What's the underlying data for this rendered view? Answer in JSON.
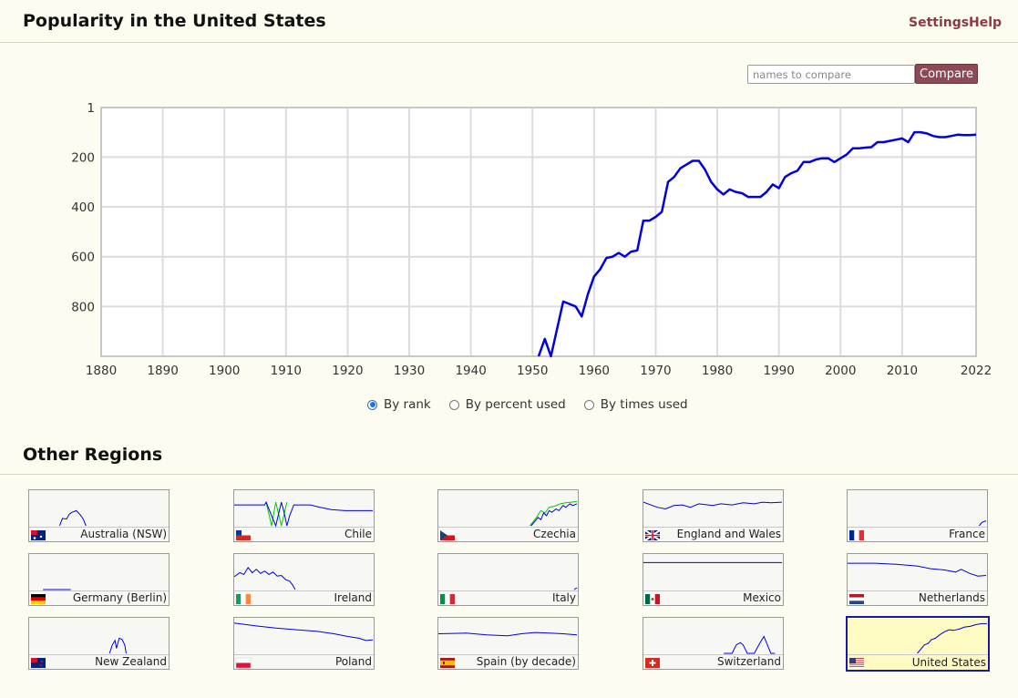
{
  "header": {
    "title": "Popularity in the United States",
    "settings_label": "Settings",
    "help_label": "Help"
  },
  "compare": {
    "placeholder": "names to compare",
    "button_label": "Compare"
  },
  "colors": {
    "accent": "#8d4a56",
    "line": "#0000e0",
    "secondary_line": "#00cc00",
    "selected_card_bg": "#fdfbc2"
  },
  "chart_data": {
    "type": "line",
    "x_range": [
      1880,
      2022
    ],
    "x_ticks": [
      "1880",
      "1890",
      "1900",
      "1910",
      "1920",
      "1930",
      "1940",
      "1950",
      "1960",
      "1970",
      "1980",
      "1990",
      "2000",
      "2010",
      "2022"
    ],
    "y_ticks": [
      "1",
      "200",
      "400",
      "600",
      "800"
    ],
    "y_axis": "rank (inverted, 1 at top)",
    "ylim": [
      1,
      1000
    ],
    "grid": true,
    "series": [
      {
        "x": [
          1951,
          1952,
          1953,
          1955,
          1957,
          1958,
          1959,
          1960,
          1961,
          1962,
          1963,
          1964,
          1965,
          1966,
          1967,
          1968,
          1969,
          1970,
          1971,
          1972,
          1973,
          1974,
          1975,
          1976,
          1977,
          1978,
          1979,
          1980,
          1981,
          1982,
          1983,
          1984,
          1985,
          1986,
          1987,
          1988,
          1989,
          1990,
          1991,
          1992,
          1993,
          1994,
          1995,
          1996,
          1997,
          1998,
          1999,
          2000,
          2001,
          2002,
          2003,
          2004,
          2005,
          2006,
          2007,
          2008,
          2009,
          2010,
          2011,
          2012,
          2013,
          2014,
          2015,
          2016,
          2017,
          2018,
          2019,
          2020,
          2021,
          2022
        ],
        "y": [
          1000,
          930,
          1000,
          780,
          800,
          840,
          750,
          680,
          650,
          605,
          600,
          585,
          600,
          580,
          575,
          455,
          455,
          440,
          420,
          300,
          280,
          245,
          230,
          215,
          215,
          250,
          300,
          330,
          350,
          330,
          340,
          345,
          360,
          360,
          360,
          340,
          310,
          325,
          280,
          265,
          255,
          220,
          220,
          210,
          205,
          205,
          220,
          205,
          190,
          165,
          165,
          162,
          160,
          140,
          140,
          135,
          130,
          125,
          140,
          100,
          100,
          105,
          115,
          120,
          120,
          115,
          110,
          112,
          112,
          110
        ]
      }
    ]
  },
  "view_options": [
    {
      "label": "By rank",
      "checked": true
    },
    {
      "label": "By percent used",
      "checked": false
    },
    {
      "label": "By times used",
      "checked": false
    }
  ],
  "other_regions": {
    "title": "Other Regions",
    "regions": [
      {
        "label": "Australia (NSW)",
        "flag": "australia-flag-icon",
        "spark": [
          [
            0.22,
            1
          ],
          [
            0.24,
            0.78
          ],
          [
            0.27,
            0.8
          ],
          [
            0.29,
            0.65
          ],
          [
            0.31,
            0.6
          ],
          [
            0.34,
            0.55
          ],
          [
            0.37,
            0.68
          ],
          [
            0.39,
            0.8
          ],
          [
            0.41,
            1
          ]
        ]
      },
      {
        "label": "Chile",
        "flag": "chile-flag-icon",
        "spark": [
          [
            0,
            0.38
          ],
          [
            0.22,
            0.38
          ],
          [
            0.23,
            0.3
          ],
          [
            0.25,
            0.5
          ],
          [
            0.27,
            0.7
          ],
          [
            0.3,
            1
          ],
          [
            0.34,
            0.3
          ],
          [
            0.36,
            0.6
          ],
          [
            0.38,
            1
          ],
          [
            0.4,
            0.7
          ],
          [
            0.43,
            0.38
          ],
          [
            0.48,
            0.38
          ],
          [
            0.55,
            0.38
          ],
          [
            0.62,
            0.45
          ],
          [
            0.7,
            0.52
          ],
          [
            0.8,
            0.55
          ],
          [
            0.9,
            0.55
          ],
          [
            1,
            0.55
          ]
        ],
        "spark2": [
          [
            0.23,
            0.3
          ],
          [
            0.27,
            1
          ],
          [
            0.3,
            0.3
          ],
          [
            0.34,
            1
          ],
          [
            0.38,
            0.3
          ]
        ]
      },
      {
        "label": "Czechia",
        "flag": "czechia-flag-icon",
        "spark": [
          [
            0.67,
            1
          ],
          [
            0.69,
            0.9
          ],
          [
            0.72,
            0.75
          ],
          [
            0.74,
            0.82
          ],
          [
            0.76,
            0.62
          ],
          [
            0.78,
            0.7
          ],
          [
            0.8,
            0.55
          ],
          [
            0.82,
            0.6
          ],
          [
            0.85,
            0.5
          ],
          [
            0.87,
            0.55
          ],
          [
            0.9,
            0.4
          ],
          [
            0.92,
            0.45
          ],
          [
            0.95,
            0.35
          ],
          [
            0.97,
            0.4
          ],
          [
            1,
            0.35
          ]
        ],
        "spark2": [
          [
            0.66,
            1
          ],
          [
            0.7,
            0.8
          ],
          [
            0.74,
            0.55
          ],
          [
            0.77,
            0.62
          ],
          [
            0.8,
            0.45
          ],
          [
            0.84,
            0.42
          ],
          [
            0.88,
            0.35
          ],
          [
            0.92,
            0.32
          ],
          [
            0.96,
            0.3
          ],
          [
            1,
            0.28
          ]
        ]
      },
      {
        "label": "England and Wales",
        "flag": "uk-flag-icon",
        "spark": [
          [
            0,
            0.3
          ],
          [
            0.1,
            0.45
          ],
          [
            0.16,
            0.5
          ],
          [
            0.22,
            0.4
          ],
          [
            0.28,
            0.38
          ],
          [
            0.34,
            0.45
          ],
          [
            0.4,
            0.35
          ],
          [
            0.5,
            0.4
          ],
          [
            0.56,
            0.35
          ],
          [
            0.64,
            0.38
          ],
          [
            0.72,
            0.32
          ],
          [
            0.8,
            0.35
          ],
          [
            0.86,
            0.3
          ],
          [
            0.92,
            0.32
          ],
          [
            1,
            0.3
          ]
        ]
      },
      {
        "label": "France",
        "flag": "france-flag-icon",
        "spark": [
          [
            0.95,
            1
          ],
          [
            0.97,
            0.9
          ],
          [
            1,
            0.85
          ]
        ]
      },
      {
        "label": "Germany (Berlin)",
        "flag": "germany-flag-icon",
        "spark": [
          [
            0.1,
            1
          ],
          [
            0.3,
            1
          ]
        ]
      },
      {
        "label": "Ireland",
        "flag": "ireland-flag-icon",
        "spark": [
          [
            0,
            0.62
          ],
          [
            0.04,
            0.5
          ],
          [
            0.07,
            0.55
          ],
          [
            0.1,
            0.35
          ],
          [
            0.13,
            0.5
          ],
          [
            0.16,
            0.4
          ],
          [
            0.19,
            0.52
          ],
          [
            0.22,
            0.45
          ],
          [
            0.25,
            0.55
          ],
          [
            0.28,
            0.48
          ],
          [
            0.31,
            0.6
          ],
          [
            0.34,
            0.58
          ],
          [
            0.37,
            0.7
          ],
          [
            0.4,
            0.75
          ],
          [
            0.42,
            0.85
          ],
          [
            0.44,
            1
          ]
        ]
      },
      {
        "label": "Italy",
        "flag": "italy-flag-icon",
        "spark": [
          [
            0.98,
            1
          ],
          [
            1,
            0.95
          ]
        ]
      },
      {
        "label": "Mexico",
        "flag": "mexico-flag-icon",
        "spark": [
          [
            0,
            0.2
          ],
          [
            1,
            0.2
          ]
        ]
      },
      {
        "label": "Netherlands",
        "flag": "netherlands-flag-icon",
        "spark": [
          [
            0,
            0.22
          ],
          [
            0.2,
            0.22
          ],
          [
            0.35,
            0.25
          ],
          [
            0.5,
            0.3
          ],
          [
            0.6,
            0.38
          ],
          [
            0.7,
            0.42
          ],
          [
            0.78,
            0.48
          ],
          [
            0.82,
            0.4
          ],
          [
            0.88,
            0.52
          ],
          [
            0.94,
            0.6
          ],
          [
            1,
            0.58
          ]
        ]
      },
      {
        "label": "New Zealand",
        "flag": "new-zealand-flag-icon",
        "spark": [
          [
            0.58,
            1
          ],
          [
            0.6,
            0.75
          ],
          [
            0.62,
            0.62
          ],
          [
            0.63,
            0.85
          ],
          [
            0.65,
            0.55
          ],
          [
            0.67,
            0.58
          ],
          [
            0.69,
            0.75
          ],
          [
            0.7,
            1
          ]
        ]
      },
      {
        "label": "Poland",
        "flag": "poland-flag-icon",
        "spark": [
          [
            0,
            0.1
          ],
          [
            0.15,
            0.18
          ],
          [
            0.3,
            0.25
          ],
          [
            0.45,
            0.3
          ],
          [
            0.6,
            0.35
          ],
          [
            0.72,
            0.42
          ],
          [
            0.82,
            0.5
          ],
          [
            0.9,
            0.55
          ],
          [
            0.95,
            0.62
          ],
          [
            1,
            0.6
          ]
        ]
      },
      {
        "label": "Spain (by decade)",
        "flag": "spain-flag-icon",
        "spark": [
          [
            0,
            0.42
          ],
          [
            0.2,
            0.4
          ],
          [
            0.35,
            0.45
          ],
          [
            0.5,
            0.48
          ],
          [
            0.6,
            0.42
          ],
          [
            0.7,
            0.38
          ],
          [
            0.8,
            0.4
          ],
          [
            0.9,
            0.42
          ],
          [
            1,
            0.45
          ]
        ]
      },
      {
        "label": "Switzerland",
        "flag": "switzerland-flag-icon",
        "spark": [
          [
            0.58,
            1
          ],
          [
            0.64,
            1
          ],
          [
            0.67,
            0.75
          ],
          [
            0.7,
            0.68
          ],
          [
            0.72,
            0.75
          ],
          [
            0.75,
            1
          ],
          [
            0.8,
            1
          ],
          [
            0.84,
            0.7
          ],
          [
            0.87,
            0.5
          ],
          [
            0.9,
            0.8
          ],
          [
            0.92,
            1
          ],
          [
            0.95,
            1
          ]
        ]
      },
      {
        "label": "United States",
        "flag": "usa-flag-icon",
        "selected": true,
        "spark": [
          [
            0.5,
            1
          ],
          [
            0.52,
            0.9
          ],
          [
            0.55,
            0.75
          ],
          [
            0.58,
            0.7
          ],
          [
            0.6,
            0.6
          ],
          [
            0.63,
            0.55
          ],
          [
            0.66,
            0.45
          ],
          [
            0.68,
            0.4
          ],
          [
            0.7,
            0.35
          ],
          [
            0.73,
            0.3
          ],
          [
            0.76,
            0.32
          ],
          [
            0.8,
            0.28
          ],
          [
            0.84,
            0.22
          ],
          [
            0.88,
            0.2
          ],
          [
            0.92,
            0.15
          ],
          [
            0.96,
            0.12
          ],
          [
            1,
            0.12
          ]
        ]
      }
    ]
  }
}
